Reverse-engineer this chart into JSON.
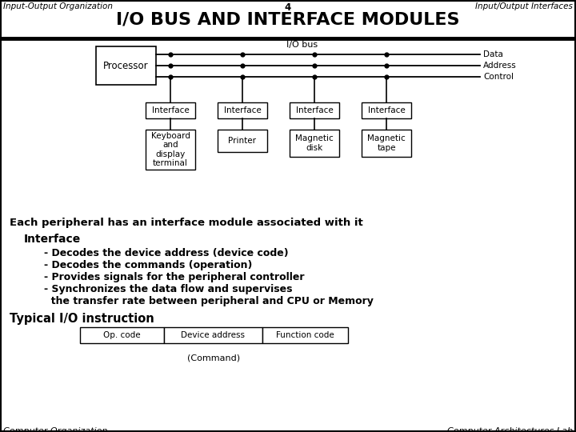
{
  "title": "I/O BUS AND INTERFACE MODULES",
  "header_left": "Input-Output Organization",
  "header_center": "4",
  "header_right": "Input/Output Interfaces",
  "footer_left": "Computer Organization",
  "footer_right": "Computer Architectures Lab",
  "io_bus_label": "I/O bus",
  "bus_labels": [
    "Data",
    "Address",
    "Control"
  ],
  "processor_label": "Processor",
  "interface_labels": [
    "Interface",
    "Interface",
    "Interface",
    "Interface"
  ],
  "peripheral_labels": [
    "Keyboard\nand\ndisplay\nterminal",
    "Printer",
    "Magnetic\ndisk",
    "Magnetic\ntape"
  ],
  "each_peripheral_text": "Each peripheral has an interface module associated with it",
  "interface_heading": "Interface",
  "interface_bullets": [
    "- Decodes the device address (device code)",
    "- Decodes the commands (operation)",
    "- Provides signals for the peripheral controller",
    "- Synchronizes the data flow and supervises",
    "  the transfer rate between peripheral and CPU or Memory"
  ],
  "typical_io_text": "Typical I/O instruction",
  "instruction_cells": [
    "Op. code",
    "Device address",
    "Function code"
  ],
  "command_label": "(Command)",
  "bg_color": "#ffffff"
}
